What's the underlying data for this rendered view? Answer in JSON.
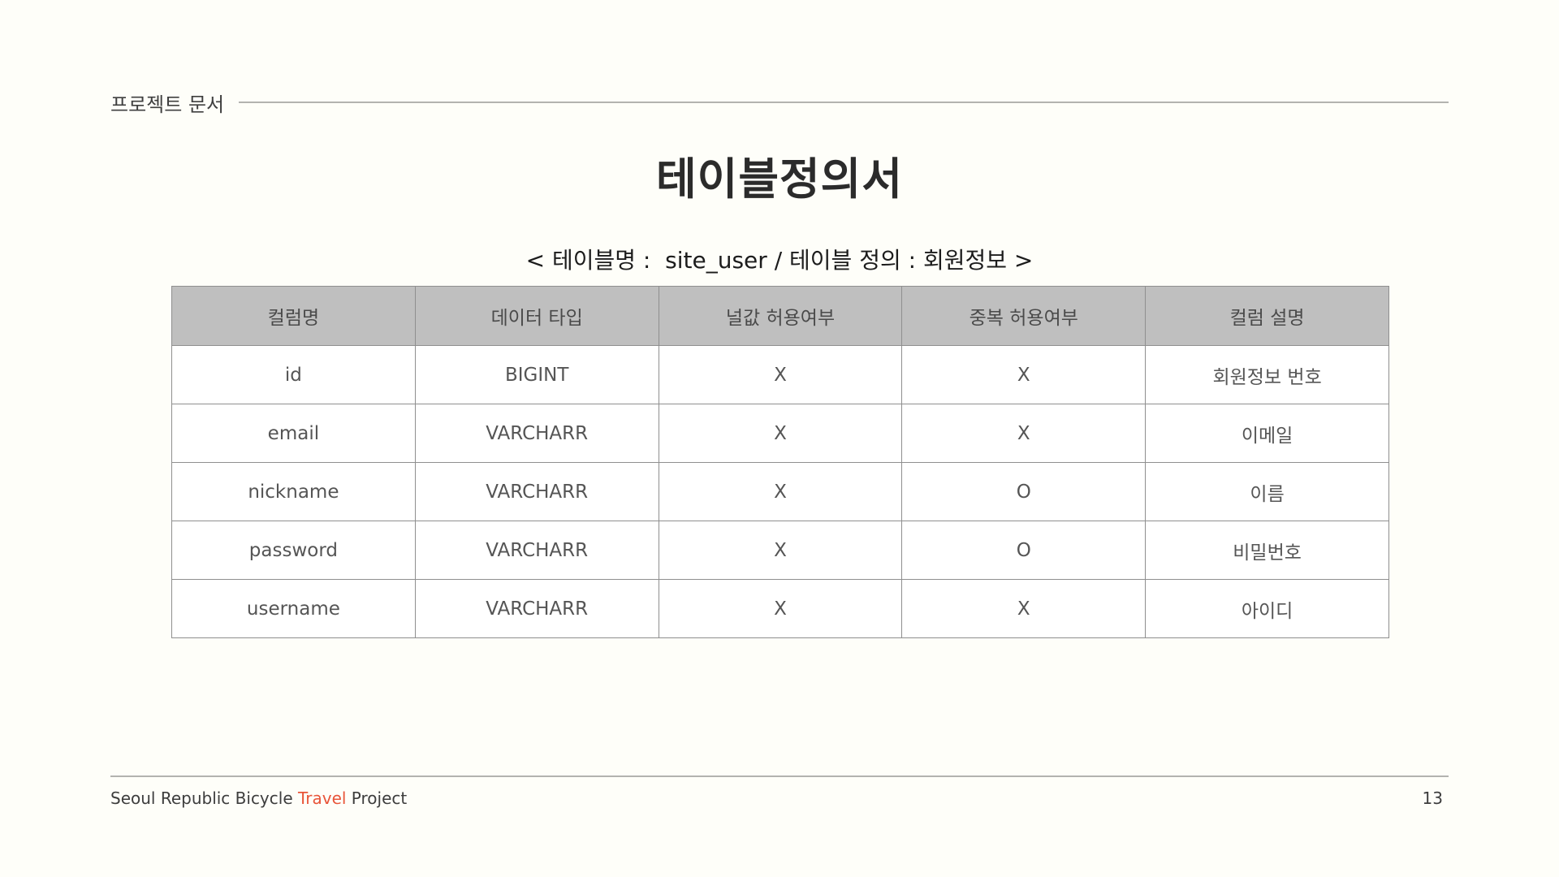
{
  "header": {
    "doc_label": "프로젝트 문서"
  },
  "title": "테이블정의서",
  "caption": "< 테이블명 :  site_user / 테이블 정의 : 회원정보 >",
  "table": {
    "columns": [
      "컬럼명",
      "데이터 타입",
      "널값 허용여부",
      "중복 허용여부",
      "컬럼 설명"
    ],
    "rows": [
      [
        "id",
        "BIGINT",
        "X",
        "X",
        "회원정보 번호"
      ],
      [
        "email",
        "VARCHARR",
        "X",
        "X",
        "이메일"
      ],
      [
        "nickname",
        "VARCHARR",
        "X",
        "O",
        "이름"
      ],
      [
        "password",
        "VARCHARR",
        "X",
        "O",
        "비밀번호"
      ],
      [
        "username",
        "VARCHARR",
        "X",
        "X",
        "아이디"
      ]
    ]
  },
  "footer": {
    "project_prefix": "Seoul Republic Bicycle ",
    "project_accent": "Travel",
    "project_suffix": " Project",
    "page_number": "13",
    "accent_color": "#e8553a"
  }
}
